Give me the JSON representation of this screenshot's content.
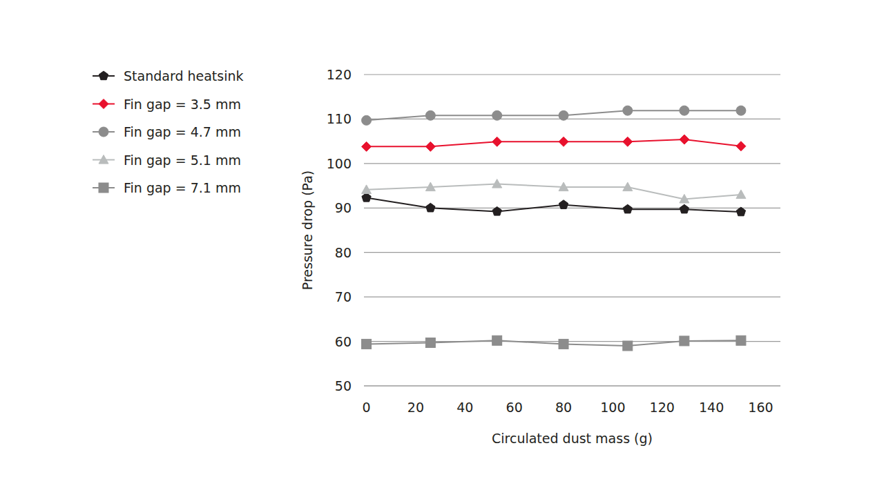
{
  "chart_data": {
    "type": "line",
    "x_label": "Circulated dust mass (g)",
    "y_label": "Pressure drop (Pa)",
    "x": [
      0,
      26,
      53,
      80,
      106,
      129,
      152
    ],
    "xlim": [
      -1,
      168
    ],
    "xticks": [
      0,
      20,
      40,
      60,
      80,
      100,
      120,
      140,
      160
    ],
    "ylim": [
      50,
      120
    ],
    "yticks": [
      50,
      60,
      70,
      80,
      90,
      100,
      110,
      120
    ],
    "grid": true,
    "legend": "left",
    "series": [
      {
        "name": "Standard heatsink",
        "color": "#231f20",
        "marker": "pentagon",
        "values": [
          92.3,
          90,
          89.2,
          90.7,
          89.7,
          89.7,
          89.1
        ]
      },
      {
        "name": "Fin gap = 3.5 mm",
        "color": "#e8112d",
        "marker": "diamond",
        "values": [
          103.8,
          103.8,
          104.9,
          104.9,
          104.9,
          105.4,
          103.9
        ]
      },
      {
        "name": "Fin gap = 4.7 mm",
        "color": "#8c8c8c",
        "marker": "circle",
        "values": [
          109.7,
          110.8,
          110.8,
          110.8,
          111.9,
          111.9,
          111.9
        ]
      },
      {
        "name": "Fin gap = 5.1 mm",
        "color": "#b9bcbc",
        "marker": "triangle",
        "values": [
          94.1,
          94.7,
          95.4,
          94.7,
          94.7,
          92,
          93
        ]
      },
      {
        "name": "Fin gap = 7.1 mm",
        "color": "#8c8c8c",
        "marker": "square",
        "values": [
          59.4,
          59.7,
          60.2,
          59.4,
          59,
          60.1,
          60.2
        ]
      }
    ]
  }
}
